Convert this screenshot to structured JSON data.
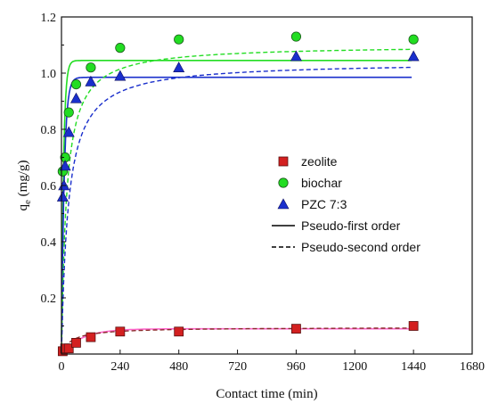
{
  "chart_data": {
    "type": "scatter",
    "xlabel": "Contact time (min)",
    "ylabel_main": "q",
    "ylabel_sub": "e",
    "ylabel_unit": " (mg/g)",
    "xlim": [
      0,
      1680
    ],
    "ylim": [
      0,
      1.2
    ],
    "xticks": [
      0,
      240,
      480,
      720,
      960,
      1200,
      1440,
      1680
    ],
    "yticks": [
      0.2,
      0.4,
      0.6,
      0.8,
      1.0,
      1.2
    ],
    "xtick_labels": [
      "0",
      "240",
      "480",
      "720",
      "960",
      "1200",
      "1440",
      "1680"
    ],
    "ytick_labels": [
      "0.2",
      "0.4",
      "0.6",
      "0.8",
      "1.0",
      "1.2"
    ],
    "grid": false,
    "legend_position": "right-middle",
    "series": [
      {
        "name": "zeolite",
        "marker": "square",
        "color": "#d32020",
        "x": [
          5,
          15,
          30,
          60,
          120,
          240,
          480,
          960,
          1440
        ],
        "y": [
          0.01,
          0.02,
          0.02,
          0.04,
          0.06,
          0.08,
          0.08,
          0.09,
          0.1
        ]
      },
      {
        "name": "biochar",
        "marker": "circle",
        "color": "#22dd22",
        "x": [
          5,
          15,
          30,
          60,
          120,
          240,
          480,
          960,
          1440
        ],
        "y": [
          0.65,
          0.7,
          0.86,
          0.96,
          1.02,
          1.09,
          1.12,
          1.13,
          1.12
        ]
      },
      {
        "name": "PZC 7:3",
        "marker": "triangle",
        "color": "#1a2fcc",
        "x": [
          5,
          10,
          15,
          30,
          60,
          120,
          240,
          480,
          960,
          1440
        ],
        "y": [
          0.56,
          0.6,
          0.67,
          0.79,
          0.91,
          0.97,
          0.99,
          1.02,
          1.06,
          1.06
        ]
      }
    ],
    "fits": {
      "pseudo_first": [
        {
          "series": "zeolite",
          "color": "#ff66cc",
          "qe": 0.09,
          "k": 0.012
        },
        {
          "series": "biochar",
          "color": "#22dd22",
          "qe": 1.045,
          "k": 0.12
        },
        {
          "series": "PZC 7:3",
          "color": "#1a2fcc",
          "qe": 0.985,
          "k": 0.09
        }
      ],
      "pseudo_second": [
        {
          "series": "zeolite",
          "color": "#8b2b2b",
          "qe": 0.095,
          "k": 0.25
        },
        {
          "series": "biochar",
          "color": "#22dd22",
          "qe": 1.1,
          "k": 0.045
        },
        {
          "series": "PZC 7:3",
          "color": "#1a2fcc",
          "qe": 1.04,
          "k": 0.035
        }
      ]
    },
    "legend": [
      {
        "label": "zeolite",
        "kind": "square",
        "color": "#d32020"
      },
      {
        "label": "biochar",
        "kind": "circle",
        "color": "#22dd22"
      },
      {
        "label": "PZC 7:3",
        "kind": "triangle",
        "color": "#1a2fcc"
      },
      {
        "label": "Pseudo-first order",
        "kind": "solid",
        "color": "#000000"
      },
      {
        "label": "Pseudo-second order",
        "kind": "dashed",
        "color": "#000000"
      }
    ]
  }
}
